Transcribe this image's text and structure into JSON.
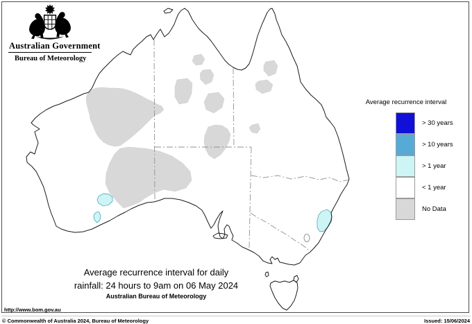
{
  "header": {
    "government_title": "Australian Government",
    "agency_title": "Bureau of Meteorology"
  },
  "legend": {
    "title": "Average recurrence interval",
    "items": [
      {
        "label": "> 30 years",
        "color": "#1010d8"
      },
      {
        "label": "> 10 years",
        "color": "#56abd6"
      },
      {
        "label": "> 1 year",
        "color": "#cdf5f6"
      },
      {
        "label": "< 1 year",
        "color": "#ffffff"
      },
      {
        "label": "No Data",
        "color": "#d8d8d8"
      }
    ]
  },
  "caption": {
    "line1": "Average recurrence interval for daily",
    "line2": "rainfall: 24 hours to 9am on 06 May 2024",
    "line3": "Australian Bureau of Meteorology"
  },
  "footer": {
    "url": "http://www.bom.gov.au",
    "copyright": "© Commonwealth of Australia 2024, Bureau of Meteorology",
    "issued": "Issued: 15/06/2024"
  },
  "map": {
    "coastline_color": "#1a1a1a",
    "state_border_color": "#909090",
    "regions": {
      "no_data": {
        "value": "No Data",
        "color": "#d8d8d8",
        "areas": [
          "central-western-australia",
          "southern-wa-interior",
          "nt-patch-a",
          "nt-patch-b",
          "nt-patch-c",
          "nt-patch-d",
          "central-australia-border-blob",
          "qld-border-dot",
          "qld-patch-e",
          "qld-patch-f",
          "qld-patch-g"
        ]
      },
      "gt_1_year": {
        "value": "> 1 year",
        "color": "#cdf5f6",
        "areas": [
          "southwest-wa-patch-1",
          "southwest-wa-patch-2",
          "mid-north-coast-nsw"
        ]
      },
      "default": {
        "value": "< 1 year",
        "color": "#ffffff"
      }
    }
  }
}
